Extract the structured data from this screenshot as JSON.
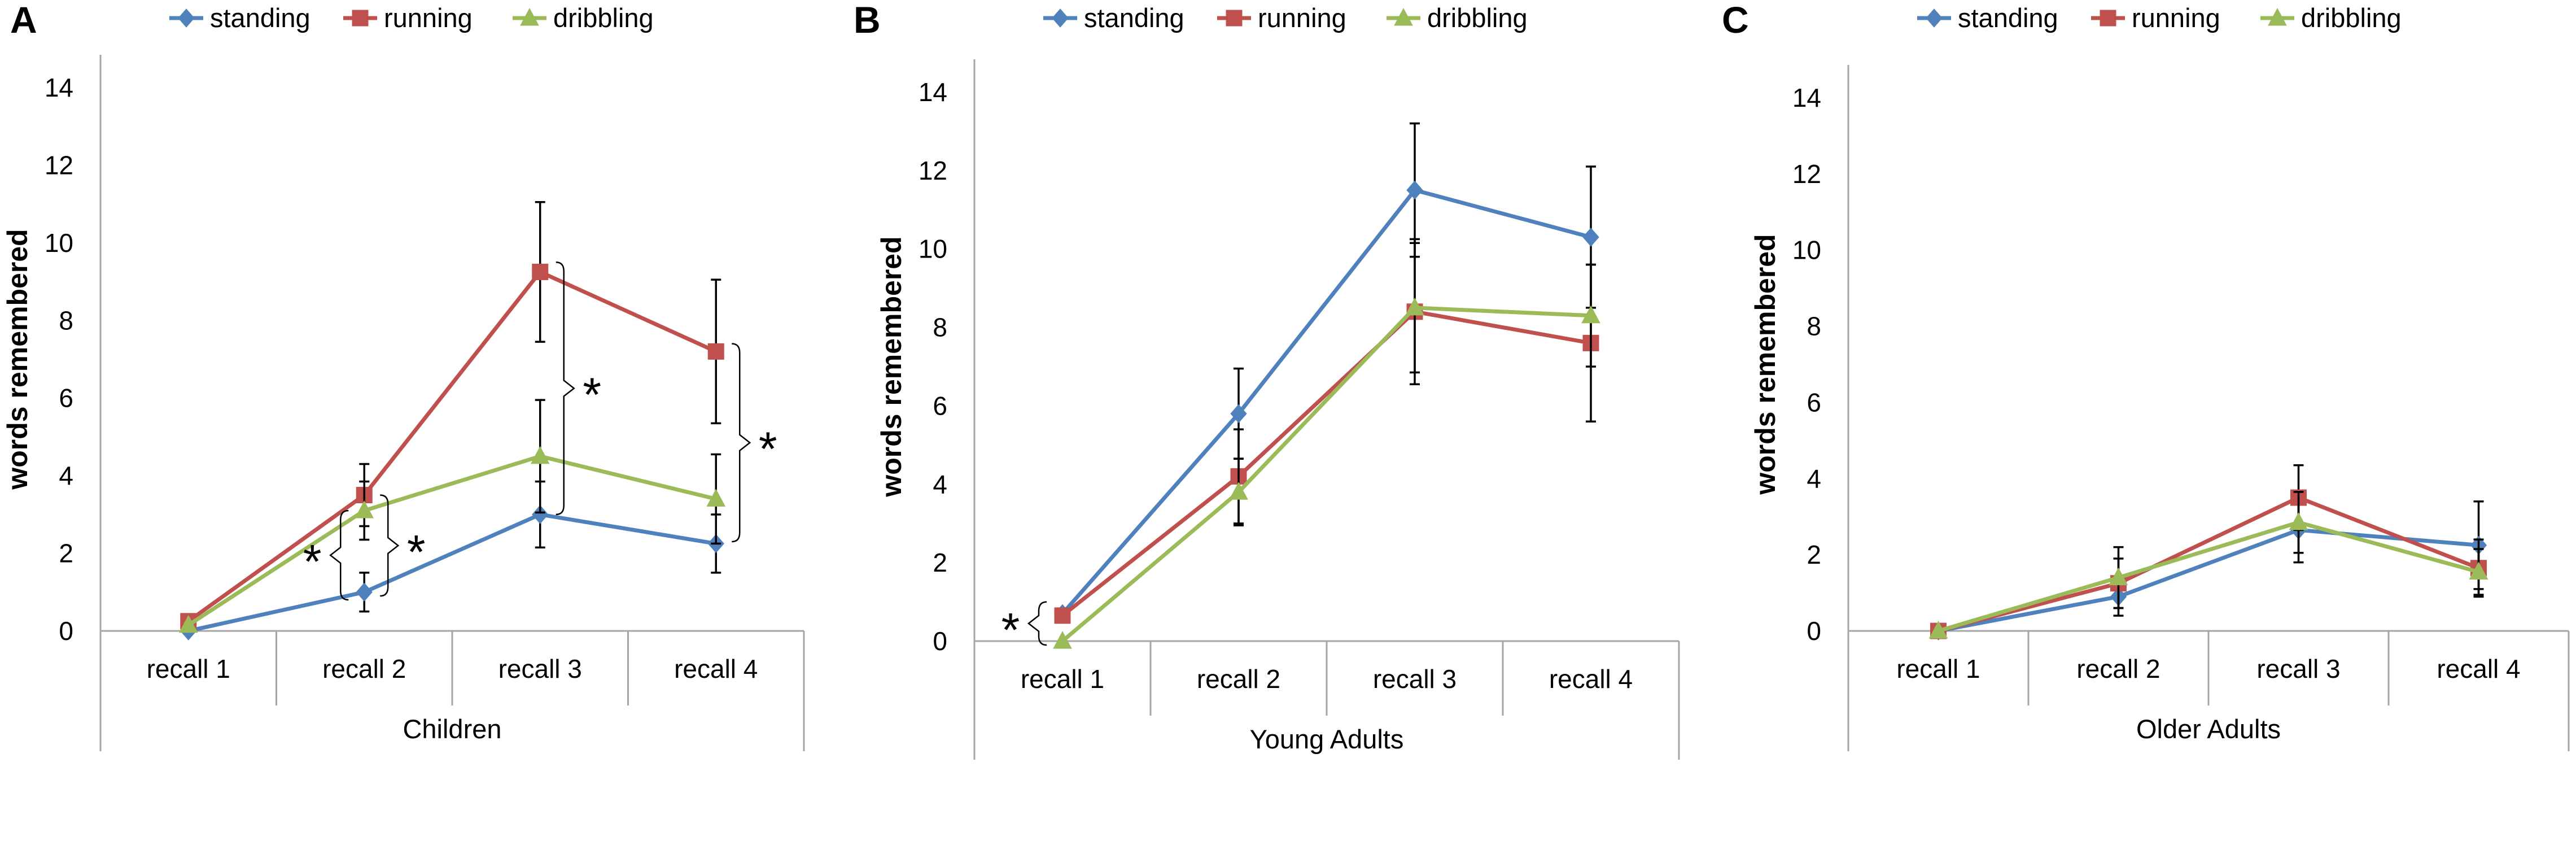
{
  "figure": {
    "y_axis_label": "words remembered",
    "legend": [
      {
        "name": "standing",
        "color": "#4f81bd",
        "marker": "diamond"
      },
      {
        "name": "running",
        "color": "#c0504d",
        "marker": "square"
      },
      {
        "name": "dribbling",
        "color": "#9bbb59",
        "marker": "triangle"
      }
    ]
  },
  "chart_data": [
    {
      "type": "line",
      "panel_letter": "A",
      "title": "",
      "xlabel": "Children",
      "ylabel": "words remembered",
      "categories": [
        "recall 1",
        "recall 2",
        "recall 3",
        "recall 4"
      ],
      "ylim": [
        0,
        15
      ],
      "yticks": [
        0,
        2,
        4,
        6,
        8,
        10,
        12,
        14
      ],
      "series": [
        {
          "name": "standing",
          "color": "#4f81bd",
          "values": [
            0.0,
            1.0,
            3.0,
            2.25
          ],
          "err_hi": [
            null,
            0.5,
            0.85,
            0.75
          ],
          "err_lo": [
            null,
            0.5,
            0.85,
            0.75
          ]
        },
        {
          "name": "running",
          "color": "#c0504d",
          "values": [
            0.25,
            3.5,
            9.25,
            7.2
          ],
          "err_hi": [
            null,
            0.8,
            1.8,
            1.85
          ],
          "err_lo": [
            null,
            0.8,
            1.8,
            1.85
          ]
        },
        {
          "name": "dribbling",
          "color": "#9bbb59",
          "values": [
            0.15,
            3.1,
            4.5,
            3.4
          ],
          "err_hi": [
            null,
            0.75,
            1.45,
            1.15
          ],
          "err_lo": [
            null,
            0.75,
            1.45,
            1.15
          ]
        }
      ],
      "annotations": [
        {
          "text": "*",
          "label": "significance",
          "category": 1,
          "side": "left",
          "from": 0.8,
          "to": 3.1
        },
        {
          "text": "*",
          "label": "significance",
          "category": 1,
          "side": "right",
          "from": 0.9,
          "to": 3.5
        },
        {
          "text": "*",
          "label": "significance",
          "category": 2,
          "side": "right",
          "from": 3.0,
          "to": 9.5
        },
        {
          "text": "*",
          "label": "significance",
          "category": 3,
          "side": "right",
          "from": 2.3,
          "to": 7.4
        }
      ]
    },
    {
      "type": "line",
      "panel_letter": "B",
      "title": "",
      "xlabel": "Young Adults",
      "ylabel": "words remembered",
      "categories": [
        "recall 1",
        "recall 2",
        "recall 3",
        "recall 4"
      ],
      "ylim": [
        0,
        15
      ],
      "yticks": [
        0,
        2,
        4,
        6,
        8,
        10,
        12,
        14
      ],
      "series": [
        {
          "name": "standing",
          "color": "#4f81bd",
          "values": [
            0.7,
            5.8,
            11.5,
            10.3
          ],
          "err_hi": [
            null,
            1.15,
            1.7,
            1.8
          ],
          "err_lo": [
            null,
            1.15,
            1.7,
            1.8
          ]
        },
        {
          "name": "running",
          "color": "#c0504d",
          "values": [
            0.65,
            4.2,
            8.4,
            7.6
          ],
          "err_hi": [
            null,
            1.2,
            1.85,
            2.0
          ],
          "err_lo": [
            null,
            1.2,
            1.85,
            2.0
          ]
        },
        {
          "name": "dribbling",
          "color": "#9bbb59",
          "values": [
            0.0,
            3.8,
            8.5,
            8.3
          ],
          "err_hi": [
            null,
            0.85,
            1.65,
            1.3
          ],
          "err_lo": [
            null,
            0.85,
            1.65,
            1.3
          ]
        }
      ],
      "annotations": [
        {
          "text": "*",
          "label": "significance",
          "category": 0,
          "side": "left",
          "from": -0.1,
          "to": 1.0
        }
      ]
    },
    {
      "type": "line",
      "panel_letter": "C",
      "title": "",
      "xlabel": "Older Adults",
      "ylabel": "words remembered",
      "categories": [
        "recall 1",
        "recall 2",
        "recall 3",
        "recall 4"
      ],
      "ylim": [
        0,
        15
      ],
      "yticks": [
        0,
        2,
        4,
        6,
        8,
        10,
        12,
        14
      ],
      "series": [
        {
          "name": "standing",
          "color": "#4f81bd",
          "values": [
            0.0,
            0.9,
            2.65,
            2.25
          ],
          "err_hi": [
            null,
            0.5,
            0.85,
            1.15
          ],
          "err_lo": [
            null,
            0.5,
            0.85,
            1.15
          ]
        },
        {
          "name": "running",
          "color": "#c0504d",
          "values": [
            0.0,
            1.25,
            3.5,
            1.65
          ],
          "err_hi": [
            null,
            0.65,
            0.85,
            0.75
          ],
          "err_lo": [
            null,
            0.65,
            0.85,
            0.75
          ]
        },
        {
          "name": "dribbling",
          "color": "#9bbb59",
          "values": [
            0.0,
            1.4,
            2.85,
            1.55
          ],
          "err_hi": [
            null,
            0.8,
            0.8,
            0.6
          ],
          "err_lo": [
            null,
            0.8,
            0.8,
            0.6
          ]
        }
      ],
      "annotations": []
    }
  ]
}
